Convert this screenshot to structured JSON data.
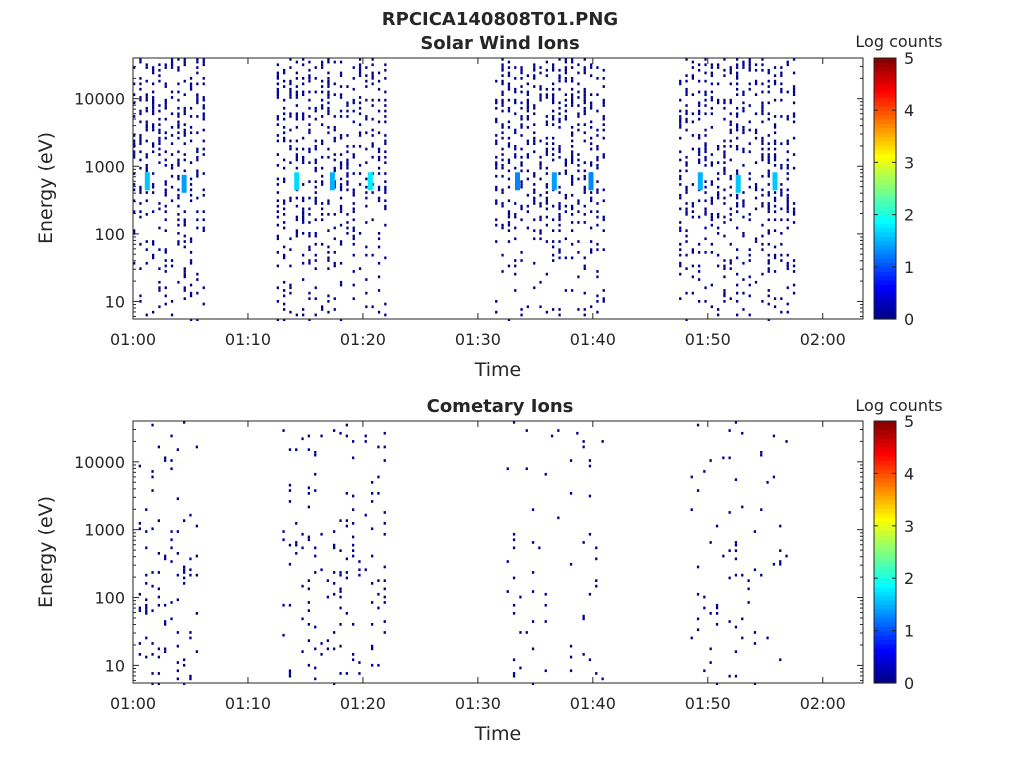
{
  "figure": {
    "title": "RPCICA140808T01.PNG"
  },
  "chart_data": [
    {
      "type": "heatmap",
      "title": "Solar Wind Ions",
      "xlabel": "Time",
      "ylabel": "Energy (eV)",
      "x_ticks": [
        "01:00",
        "01:10",
        "01:20",
        "01:30",
        "01:40",
        "01:50",
        "02:00"
      ],
      "x_range_minutes": [
        0,
        63.5
      ],
      "y_ticks": [
        "10",
        "100",
        "1000",
        "10000"
      ],
      "y_scale": "log",
      "ylim": [
        5.5,
        40000
      ],
      "colorbar": {
        "title": "Log counts",
        "ticks": [
          "0",
          "1",
          "2",
          "3",
          "4",
          "5"
        ],
        "range": [
          0,
          5
        ]
      },
      "bursts": [
        {
          "start_min": 0.0,
          "end_min": 6.2,
          "peak_energy_eV": 600
        },
        {
          "start_min": 12.5,
          "end_min": 22.3,
          "peak_energy_eV": 600
        },
        {
          "start_min": 31.5,
          "end_min": 41.0,
          "peak_energy_eV": 600
        },
        {
          "start_min": 47.5,
          "end_min": 57.5,
          "peak_energy_eV": 600
        }
      ],
      "peak_columns": [
        {
          "minute": 1.2,
          "energy_eV": 600,
          "log_counts": 1.6
        },
        {
          "minute": 4.4,
          "energy_eV": 550,
          "log_counts": 1.4
        },
        {
          "minute": 14.2,
          "energy_eV": 600,
          "log_counts": 1.7
        },
        {
          "minute": 17.3,
          "energy_eV": 600,
          "log_counts": 1.5
        },
        {
          "minute": 20.6,
          "energy_eV": 600,
          "log_counts": 1.8
        },
        {
          "minute": 33.4,
          "energy_eV": 600,
          "log_counts": 1.3
        },
        {
          "minute": 36.6,
          "energy_eV": 600,
          "log_counts": 1.4
        },
        {
          "minute": 39.8,
          "energy_eV": 600,
          "log_counts": 1.3
        },
        {
          "minute": 49.3,
          "energy_eV": 600,
          "log_counts": 1.5
        },
        {
          "minute": 52.6,
          "energy_eV": 550,
          "log_counts": 1.6
        },
        {
          "minute": 55.8,
          "energy_eV": 600,
          "log_counts": 1.6
        }
      ]
    },
    {
      "type": "heatmap",
      "title": "Cometary Ions",
      "xlabel": "Time",
      "ylabel": "Energy (eV)",
      "x_ticks": [
        "01:00",
        "01:10",
        "01:20",
        "01:30",
        "01:40",
        "01:50",
        "02:00"
      ],
      "x_range_minutes": [
        0,
        63.5
      ],
      "y_ticks": [
        "10",
        "100",
        "1000",
        "10000"
      ],
      "y_scale": "log",
      "ylim": [
        5.5,
        40000
      ],
      "colorbar": {
        "title": "Log counts",
        "ticks": [
          "0",
          "1",
          "2",
          "3",
          "4",
          "5"
        ],
        "range": [
          0,
          5
        ]
      },
      "bursts": [
        {
          "start_min": 0.5,
          "end_min": 5.8,
          "density": 0.12
        },
        {
          "start_min": 13.0,
          "end_min": 22.3,
          "density": 0.1
        },
        {
          "start_min": 32.5,
          "end_min": 41.0,
          "density": 0.04
        },
        {
          "start_min": 48.5,
          "end_min": 57.2,
          "density": 0.05
        }
      ]
    }
  ],
  "colors": {
    "colormap": [
      "#00007f",
      "#0000ff",
      "#007fff",
      "#00ffff",
      "#7fff7f",
      "#ffff00",
      "#ff7f00",
      "#ff0000",
      "#7f0000"
    ],
    "pixel": "#00008b",
    "axis": "#262626"
  }
}
